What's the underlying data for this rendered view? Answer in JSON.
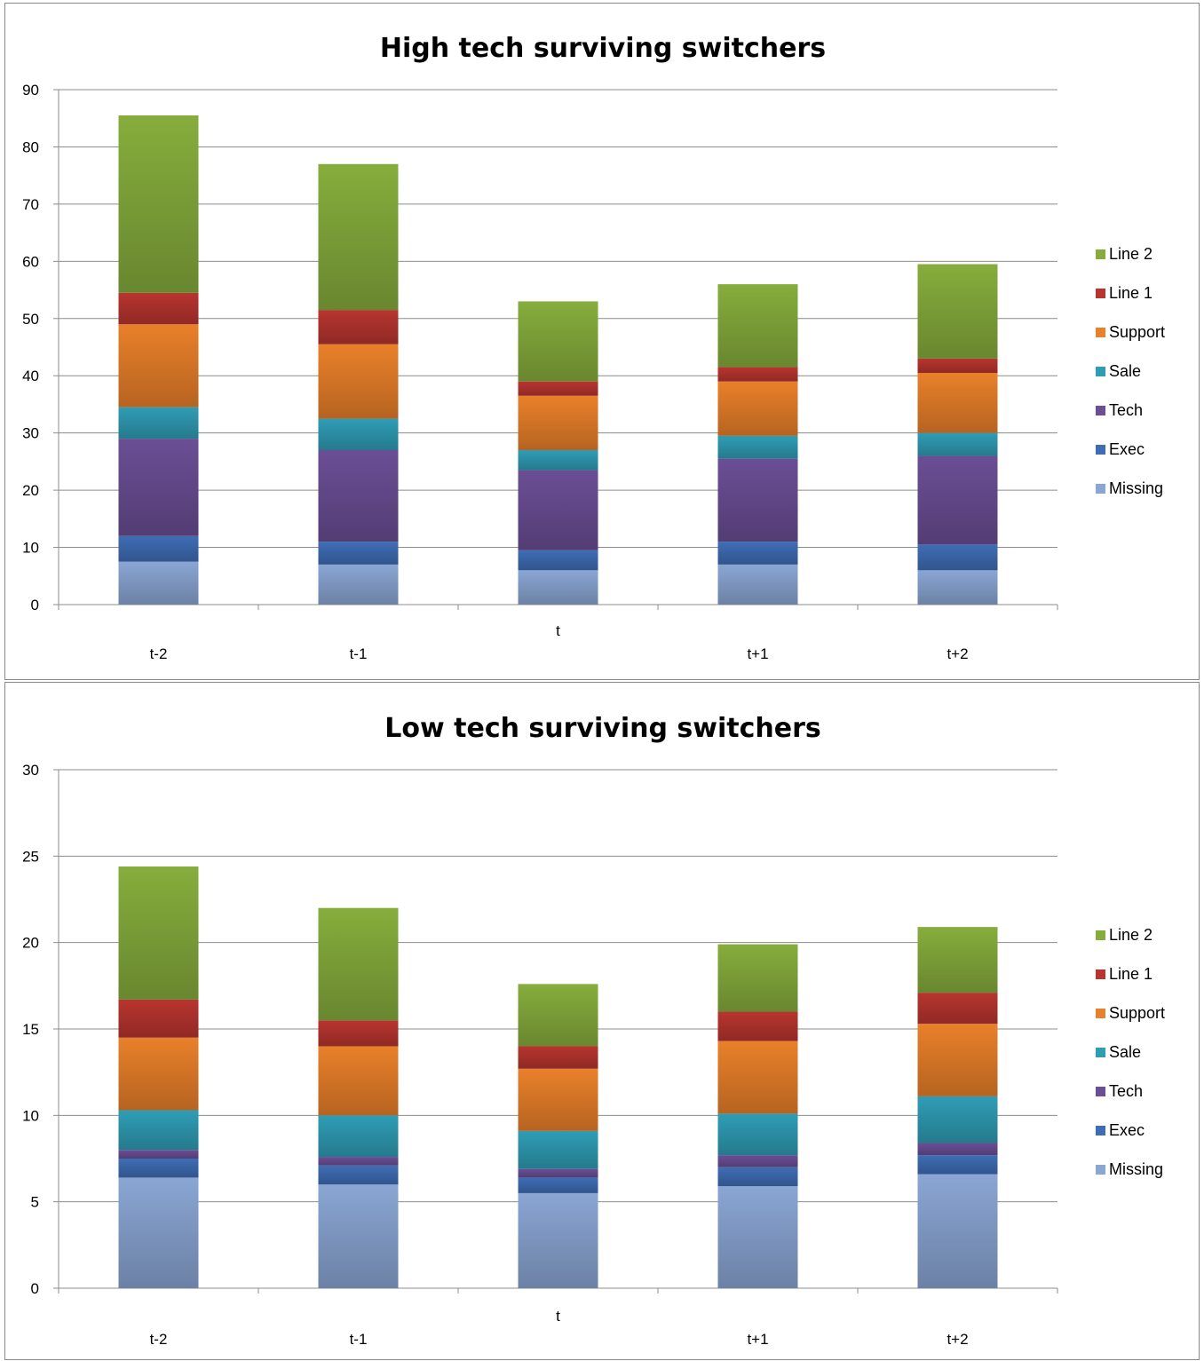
{
  "colors": {
    "Missing": "#8aa6d4",
    "Exec": "#3f6db5",
    "Tech": "#6b4e95",
    "Sale": "#2f9db5",
    "Support": "#e9802a",
    "Line 1": "#b8352f",
    "Line 2": "#86ad3c"
  },
  "chart_data": [
    {
      "type": "bar",
      "stacked": true,
      "title": "High tech surviving switchers",
      "categories": [
        "t-2",
        "t-1",
        "t",
        "t+1",
        "t+2"
      ],
      "ylim": [
        0,
        90
      ],
      "yticks": [
        0,
        10,
        20,
        30,
        40,
        50,
        60,
        70,
        80,
        90
      ],
      "grid": true,
      "legend": "right",
      "series": [
        {
          "name": "Missing",
          "values": [
            7.5,
            7,
            6,
            7,
            6
          ]
        },
        {
          "name": "Exec",
          "values": [
            4.5,
            4,
            3.5,
            4,
            4.5
          ]
        },
        {
          "name": "Tech",
          "values": [
            17,
            16,
            14,
            14.5,
            15.5
          ]
        },
        {
          "name": "Sale",
          "values": [
            5.5,
            5.5,
            3.5,
            4,
            4
          ]
        },
        {
          "name": "Support",
          "values": [
            14.5,
            13,
            9.5,
            9.5,
            10.5
          ]
        },
        {
          "name": "Line 1",
          "values": [
            5.5,
            6,
            2.5,
            2.5,
            2.5
          ]
        },
        {
          "name": "Line 2",
          "values": [
            31,
            25.5,
            14,
            14.5,
            16.5
          ]
        }
      ]
    },
    {
      "type": "bar",
      "stacked": true,
      "title": "Low tech surviving switchers",
      "categories": [
        "t-2",
        "t-1",
        "t",
        "t+1",
        "t+2"
      ],
      "ylim": [
        0,
        30
      ],
      "yticks": [
        0,
        5,
        10,
        15,
        20,
        25,
        30
      ],
      "grid": true,
      "legend": "right",
      "series": [
        {
          "name": "Missing",
          "values": [
            6.4,
            6,
            5.5,
            5.9,
            6.6
          ]
        },
        {
          "name": "Exec",
          "values": [
            1.1,
            1.1,
            0.9,
            1.1,
            1.1
          ]
        },
        {
          "name": "Tech",
          "values": [
            0.5,
            0.5,
            0.5,
            0.7,
            0.7
          ]
        },
        {
          "name": "Sale",
          "values": [
            2.3,
            2.4,
            2.2,
            2.4,
            2.7
          ]
        },
        {
          "name": "Support",
          "values": [
            4.2,
            4,
            3.6,
            4.2,
            4.2
          ]
        },
        {
          "name": "Line 1",
          "values": [
            2.2,
            1.5,
            1.3,
            1.7,
            1.8
          ]
        },
        {
          "name": "Line 2",
          "values": [
            7.7,
            6.5,
            3.6,
            3.9,
            3.8
          ]
        }
      ]
    }
  ]
}
